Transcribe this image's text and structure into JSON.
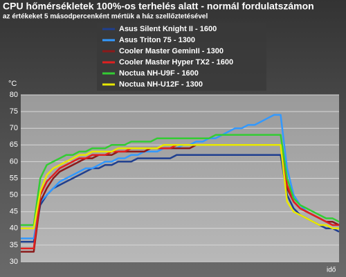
{
  "chart_data": {
    "type": "line",
    "title": "CPU hőmérsékletek 100%-os terhelés alatt - normál fordulatszámon",
    "subtitle": "az értékeket 5 másodpercenként mértük a ház szellőztetésével",
    "y_label": "°C",
    "x_label": "idő",
    "ylim": [
      30,
      80
    ],
    "yticks": [
      30,
      35,
      40,
      45,
      50,
      55,
      60,
      65,
      70,
      75,
      80
    ],
    "grid": true,
    "legend": "top",
    "series": [
      {
        "name": "Asus Silent Knight II - 1600",
        "color": "#1f3f8f",
        "values": [
          36,
          36,
          36,
          47,
          50,
          52,
          53,
          54,
          55,
          56,
          57,
          58,
          58,
          59,
          59,
          60,
          60,
          60,
          61,
          61,
          61,
          61,
          61,
          61,
          62,
          62,
          62,
          62,
          62,
          62,
          62,
          62,
          62,
          62,
          62,
          62,
          62,
          62,
          62,
          62,
          62,
          50,
          46,
          44,
          43,
          42,
          41,
          40,
          40,
          39
        ]
      },
      {
        "name": "Asus Triton 75 - 1300",
        "color": "#3399ff",
        "values": [
          37,
          37,
          37,
          48,
          50,
          52,
          54,
          55,
          56,
          57,
          58,
          58,
          59,
          60,
          60,
          61,
          61,
          62,
          62,
          63,
          63,
          63,
          64,
          64,
          64,
          65,
          65,
          66,
          66,
          67,
          67,
          68,
          69,
          70,
          70,
          71,
          71,
          72,
          73,
          74,
          74,
          58,
          50,
          47,
          45,
          44,
          43,
          42,
          41,
          41
        ]
      },
      {
        "name": "Cooler Master GeminII - 1300",
        "color": "#8b1a1a",
        "values": [
          33,
          33,
          33,
          48,
          52,
          55,
          57,
          58,
          59,
          60,
          61,
          61,
          62,
          62,
          62,
          63,
          63,
          63,
          63,
          63,
          64,
          64,
          64,
          64,
          64,
          64,
          64,
          65,
          65,
          65,
          65,
          65,
          65,
          65,
          65,
          65,
          65,
          65,
          65,
          65,
          65,
          52,
          48,
          46,
          45,
          44,
          43,
          42,
          42,
          41
        ]
      },
      {
        "name": "Cooler Master Hyper TX2 - 1600",
        "color": "#e02020",
        "values": [
          34,
          34,
          34,
          50,
          54,
          56,
          58,
          59,
          60,
          61,
          61,
          62,
          62,
          62,
          63,
          63,
          63,
          64,
          64,
          64,
          64,
          64,
          64,
          64,
          65,
          65,
          65,
          65,
          65,
          65,
          65,
          65,
          65,
          65,
          65,
          65,
          65,
          65,
          65,
          65,
          65,
          53,
          48,
          46,
          45,
          44,
          43,
          42,
          41,
          41
        ]
      },
      {
        "name": "Noctua NH-U9F - 1600",
        "color": "#33cc33",
        "values": [
          41,
          41,
          41,
          55,
          59,
          60,
          61,
          62,
          62,
          63,
          63,
          64,
          64,
          64,
          65,
          65,
          65,
          66,
          66,
          66,
          66,
          67,
          67,
          67,
          67,
          67,
          67,
          67,
          67,
          67,
          68,
          68,
          68,
          68,
          68,
          68,
          68,
          68,
          68,
          68,
          68,
          55,
          49,
          47,
          46,
          45,
          44,
          43,
          43,
          42
        ]
      },
      {
        "name": "Noctua NH-U12F - 1300",
        "color": "#e8e800",
        "values": [
          40,
          40,
          40,
          51,
          56,
          58,
          59,
          60,
          61,
          62,
          62,
          63,
          63,
          63,
          63,
          64,
          64,
          64,
          64,
          64,
          64,
          64,
          65,
          65,
          65,
          65,
          65,
          65,
          65,
          65,
          65,
          65,
          65,
          65,
          65,
          65,
          65,
          65,
          65,
          65,
          65,
          48,
          45,
          44,
          43,
          42,
          41,
          41,
          40,
          40
        ]
      }
    ]
  }
}
